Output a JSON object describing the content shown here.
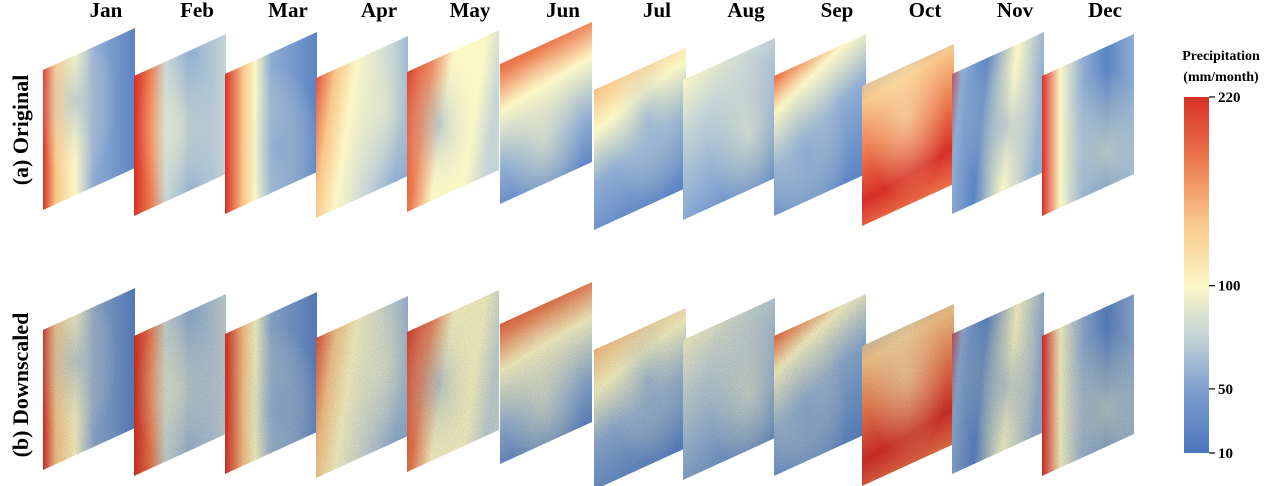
{
  "figure": {
    "months": [
      "Jan",
      "Feb",
      "Mar",
      "Apr",
      "May",
      "Jun",
      "Jul",
      "Aug",
      "Sep",
      "Oct",
      "Nov",
      "Dec"
    ],
    "rows": [
      {
        "label": "(a) Original",
        "kind": "original"
      },
      {
        "label": "(b) Downscaled",
        "kind": "downscaled"
      }
    ]
  },
  "colorbar": {
    "title_line1": "Precipitation",
    "title_line2": "(mm/month)",
    "min": 10,
    "max": 220,
    "ticks": [
      {
        "label": "220",
        "value": 220
      },
      {
        "label": "100",
        "value": 100
      },
      {
        "label": "50",
        "value": 50
      },
      {
        "label": "10",
        "value": 10
      }
    ],
    "colors": [
      "#4a76bd",
      "#7e9fce",
      "#c5d4d6",
      "#fbf7c6",
      "#f9c78a",
      "#ec7a4f",
      "#d73027"
    ]
  },
  "chart_data": {
    "type": "heatmap",
    "series": [
      {
        "name": "(a) Original",
        "categories": [
          "Jan",
          "Feb",
          "Mar",
          "Apr",
          "May",
          "Jun",
          "Jul",
          "Aug",
          "Sep",
          "Oct",
          "Nov",
          "Dec"
        ]
      },
      {
        "name": "(b) Downscaled",
        "categories": [
          "Jan",
          "Feb",
          "Mar",
          "Apr",
          "May",
          "Jun",
          "Jul",
          "Aug",
          "Sep",
          "Oct",
          "Nov",
          "Dec"
        ]
      }
    ],
    "value_range": [
      10,
      220
    ],
    "units": "mm/month"
  }
}
